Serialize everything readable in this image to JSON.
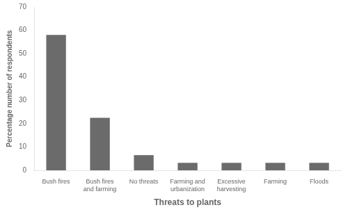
{
  "chart_data": {
    "type": "bar",
    "categories": [
      "Bush fires",
      "Bush fires\nand farming",
      "No threats",
      "Farming and\nurbanization",
      "Excessive\nharvesting",
      "Farming",
      "Floods"
    ],
    "values": [
      58,
      22.5,
      6.5,
      3.2,
      3.2,
      3.2,
      3.2
    ],
    "color": "#6b6b6b",
    "xlabel": "Threats to plants",
    "ylabel": "Percentage number of respondents",
    "ylim": [
      0,
      70
    ],
    "yticks": [
      0,
      10,
      20,
      30,
      40,
      50,
      60,
      70
    ],
    "grid": false
  }
}
